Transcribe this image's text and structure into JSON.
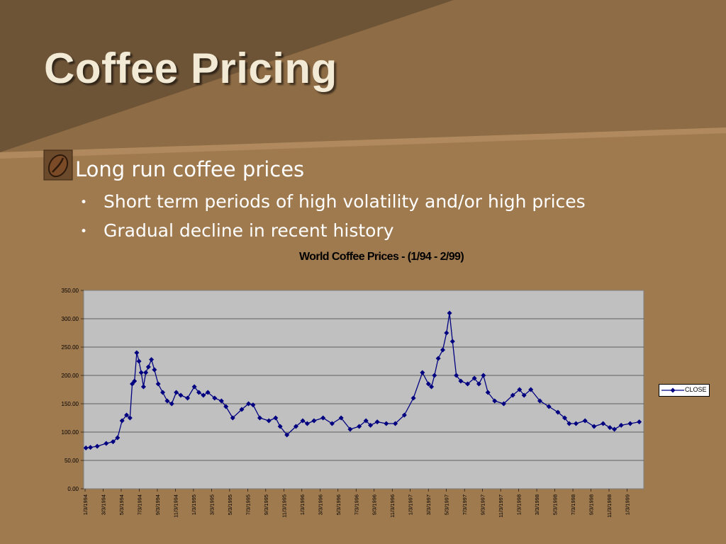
{
  "slide": {
    "title": "Coffee Pricing",
    "bullet1": "Long run coffee prices",
    "sub1": "Short term periods of high volatility and/or high prices",
    "sub2": "Gradual decline in recent history"
  },
  "colors": {
    "background": "#a07a4f",
    "header_dark": "#6b5236",
    "plot_area": "#c0c0c0",
    "series": "#000080",
    "text_light": "#ffffff"
  },
  "chart_data": {
    "type": "line",
    "title": "World Coffee Prices - (1/94 - 2/99)",
    "ylim": [
      0,
      350
    ],
    "yticks": [
      "0.00",
      "50.00",
      "100.00",
      "150.00",
      "200.00",
      "250.00",
      "300.00",
      "350.00"
    ],
    "grid": true,
    "legend_position": "right",
    "x_tick_labels": [
      "1/3/1994",
      "3/3/1994",
      "5/3/1994",
      "7/3/1994",
      "9/3/1994",
      "11/3/1994",
      "1/3/1995",
      "3/3/1995",
      "5/3/1995",
      "7/3/1995",
      "9/3/1995",
      "11/3/1995",
      "1/3/1996",
      "3/3/1996",
      "5/3/1996",
      "7/3/1996",
      "9/3/1996",
      "11/3/1996",
      "1/3/1997",
      "3/3/1997",
      "5/3/1997",
      "7/3/1997",
      "9/3/1997",
      "11/3/1997",
      "1/3/1998",
      "3/3/1998",
      "5/3/1998",
      "7/3/1998",
      "9/3/1998",
      "11/3/1998",
      "1/3/1999"
    ],
    "series": [
      {
        "name": "CLOSE",
        "x": [
          "1994-01",
          "1994-01",
          "1994-02",
          "1994-03",
          "1994-04",
          "1994-04",
          "1994-05",
          "1994-05",
          "1994-06",
          "1994-06",
          "1994-06",
          "1994-06",
          "1994-07",
          "1994-07",
          "1994-07",
          "1994-07",
          "1994-08",
          "1994-08",
          "1994-08",
          "1994-09",
          "1994-09",
          "1994-10",
          "1994-10",
          "1994-11",
          "1994-11",
          "1994-12",
          "1995-01",
          "1995-01",
          "1995-02",
          "1995-02",
          "1995-03",
          "1995-04",
          "1995-04",
          "1995-05",
          "1995-06",
          "1995-07",
          "1995-07",
          "1995-08",
          "1995-09",
          "1995-10",
          "1995-10",
          "1995-11",
          "1995-12",
          "1996-01",
          "1996-01",
          "1996-02",
          "1996-03",
          "1996-04",
          "1996-05",
          "1996-06",
          "1996-07",
          "1996-08",
          "1996-08",
          "1996-09",
          "1996-10",
          "1996-11",
          "1996-12",
          "1997-01",
          "1997-02",
          "1997-03",
          "1997-03",
          "1997-03",
          "1997-04",
          "1997-04",
          "1997-05",
          "1997-05",
          "1997-05",
          "1997-06",
          "1997-06",
          "1997-07",
          "1997-08",
          "1997-08",
          "1997-09",
          "1997-09",
          "1997-10",
          "1997-11",
          "1997-12",
          "1998-01",
          "1998-01",
          "1998-02",
          "1998-03",
          "1998-04",
          "1998-05",
          "1998-06",
          "1998-06",
          "1998-07",
          "1998-08",
          "1998-09",
          "1998-10",
          "1998-11",
          "1998-11",
          "1998-12",
          "1999-01",
          "1999-02"
        ],
        "values": [
          72,
          73,
          75,
          80,
          83,
          90,
          120,
          130,
          125,
          185,
          190,
          240,
          225,
          205,
          180,
          205,
          215,
          228,
          210,
          185,
          170,
          155,
          150,
          170,
          165,
          160,
          180,
          170,
          165,
          170,
          160,
          155,
          145,
          125,
          140,
          150,
          148,
          125,
          120,
          125,
          110,
          95,
          110,
          120,
          115,
          120,
          125,
          115,
          125,
          105,
          110,
          120,
          112,
          118,
          115,
          115,
          130,
          160,
          205,
          185,
          180,
          200,
          230,
          245,
          275,
          310,
          260,
          200,
          190,
          185,
          195,
          185,
          200,
          170,
          155,
          150,
          165,
          175,
          165,
          175,
          155,
          145,
          135,
          125,
          115,
          115,
          120,
          110,
          115,
          108,
          105,
          112,
          115,
          118
        ]
      }
    ]
  }
}
